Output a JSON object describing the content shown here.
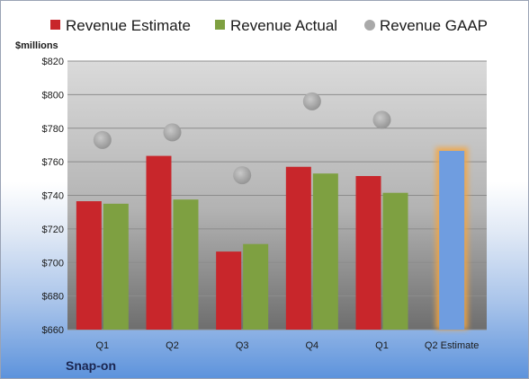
{
  "chart_data": {
    "type": "bar",
    "unit_label": "$millions",
    "categories": [
      "Q1",
      "Q2",
      "Q3",
      "Q4",
      "Q1",
      "Q2 Estimate"
    ],
    "ylim": [
      660,
      820
    ],
    "yticks": [
      660,
      680,
      700,
      720,
      740,
      760,
      780,
      800,
      820
    ],
    "series": [
      {
        "name": "Revenue Estimate",
        "color": "#c8262b",
        "values": [
          736.5,
          763.5,
          706.5,
          757,
          751.5,
          null
        ]
      },
      {
        "name": "Revenue Actual",
        "color": "#7ea041",
        "values": [
          735,
          737.5,
          711,
          753,
          741.5,
          null
        ]
      },
      {
        "name": "Revenue GAAP",
        "color": "#a9a9a9",
        "values": [
          773,
          777.5,
          752,
          796,
          785,
          null
        ]
      },
      {
        "name": "",
        "color": "#6f9de0",
        "values": [
          null,
          null,
          null,
          null,
          null,
          766.5
        ]
      }
    ],
    "grid": true,
    "legend_position": "top"
  },
  "footer": {
    "company": "Snap-on"
  }
}
